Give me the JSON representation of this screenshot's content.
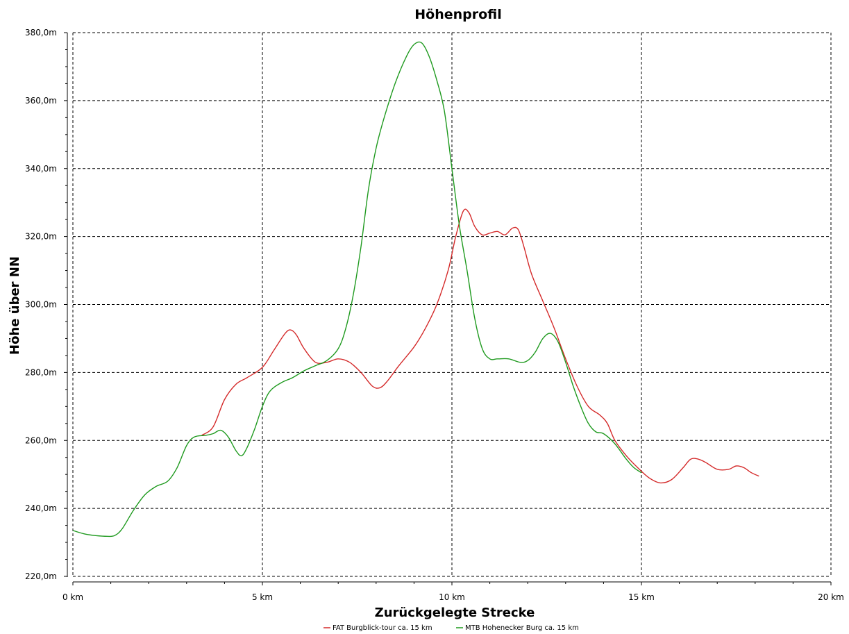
{
  "chart_data": {
    "type": "line",
    "title": "Höhenprofil",
    "xlabel": "Zurückgelegte Strecke",
    "ylabel": "Höhe über NN",
    "xlim": [
      0,
      20
    ],
    "ylim": [
      220,
      380
    ],
    "x_ticks": [
      0,
      5,
      10,
      15,
      20
    ],
    "x_tick_labels": [
      "0 km",
      "5 km",
      "10 km",
      "15 km",
      "20 km"
    ],
    "y_ticks": [
      220,
      240,
      260,
      280,
      300,
      320,
      340,
      360,
      380
    ],
    "y_tick_labels": [
      "220,0m",
      "240,0m",
      "260,0m",
      "280,0m",
      "300,0m",
      "320,0m",
      "340,0m",
      "360,0m",
      "380,0m"
    ],
    "grid": true,
    "legend_position": "bottom",
    "series": [
      {
        "name": "FAT Burgblick-tour ca. 15 km",
        "color": "#d42a2a",
        "x": [
          3.4,
          3.7,
          4.0,
          4.3,
          4.6,
          5.0,
          5.3,
          5.6,
          5.75,
          5.9,
          6.1,
          6.4,
          6.7,
          7.0,
          7.3,
          7.6,
          7.9,
          8.1,
          8.3,
          8.6,
          9.0,
          9.3,
          9.6,
          9.9,
          10.1,
          10.3,
          10.45,
          10.6,
          10.8,
          11.0,
          11.2,
          11.4,
          11.6,
          11.75,
          11.9,
          12.1,
          12.4,
          12.7,
          13.0,
          13.3,
          13.6,
          13.9,
          14.1,
          14.3,
          14.6,
          14.9,
          15.2,
          15.5,
          15.8,
          16.1,
          16.3,
          16.5,
          16.7,
          17.0,
          17.3,
          17.5,
          17.7,
          17.9,
          18.1
        ],
        "y": [
          261.5,
          264,
          272,
          276.5,
          278.5,
          281.5,
          286.5,
          291.5,
          292.5,
          291,
          287,
          283,
          283,
          284,
          283,
          280,
          276,
          275.5,
          277.5,
          282,
          287.5,
          293,
          300,
          310,
          320,
          327.5,
          327,
          323,
          320.5,
          321,
          321.5,
          320.5,
          322.5,
          322,
          317,
          309,
          301,
          293,
          284,
          276,
          270,
          267.5,
          265,
          260,
          255.5,
          252,
          249,
          247.5,
          248.5,
          252,
          254.5,
          254.5,
          253.5,
          251.5,
          251.5,
          252.5,
          252,
          250.5,
          249.5
        ]
      },
      {
        "name": "MTB Hohenecker Burg ca. 15 km",
        "color": "#1f9a1f",
        "x": [
          0.0,
          0.3,
          0.6,
          0.9,
          1.1,
          1.3,
          1.6,
          1.9,
          2.2,
          2.5,
          2.75,
          3.0,
          3.2,
          3.5,
          3.7,
          3.9,
          4.1,
          4.3,
          4.45,
          4.6,
          4.8,
          5.0,
          5.2,
          5.5,
          5.8,
          6.1,
          6.4,
          6.7,
          7.0,
          7.2,
          7.4,
          7.6,
          7.8,
          8.0,
          8.2,
          8.5,
          8.8,
          9.0,
          9.2,
          9.4,
          9.6,
          9.8,
          10.0,
          10.2,
          10.4,
          10.6,
          10.8,
          11.0,
          11.2,
          11.5,
          11.8,
          12.0,
          12.2,
          12.4,
          12.6,
          12.8,
          13.0,
          13.2,
          13.4,
          13.6,
          13.8,
          14.0,
          14.3,
          14.6,
          14.8,
          15.0
        ],
        "y": [
          233.5,
          232.5,
          232,
          231.8,
          232,
          234,
          239.5,
          244,
          246.5,
          248,
          252,
          258.5,
          261,
          261.5,
          262,
          263,
          261,
          257,
          255.5,
          258,
          263.5,
          270,
          274.5,
          277,
          278.5,
          280.5,
          282,
          283.5,
          287,
          293,
          303,
          317,
          334,
          346,
          354.5,
          365,
          373,
          376.5,
          377,
          373,
          366,
          357,
          340,
          323,
          310,
          296,
          287,
          284,
          284,
          284,
          283,
          283.5,
          286,
          290,
          291.5,
          289,
          283,
          276,
          270,
          265,
          262.5,
          262,
          259,
          254.5,
          252,
          250.5
        ]
      }
    ]
  }
}
